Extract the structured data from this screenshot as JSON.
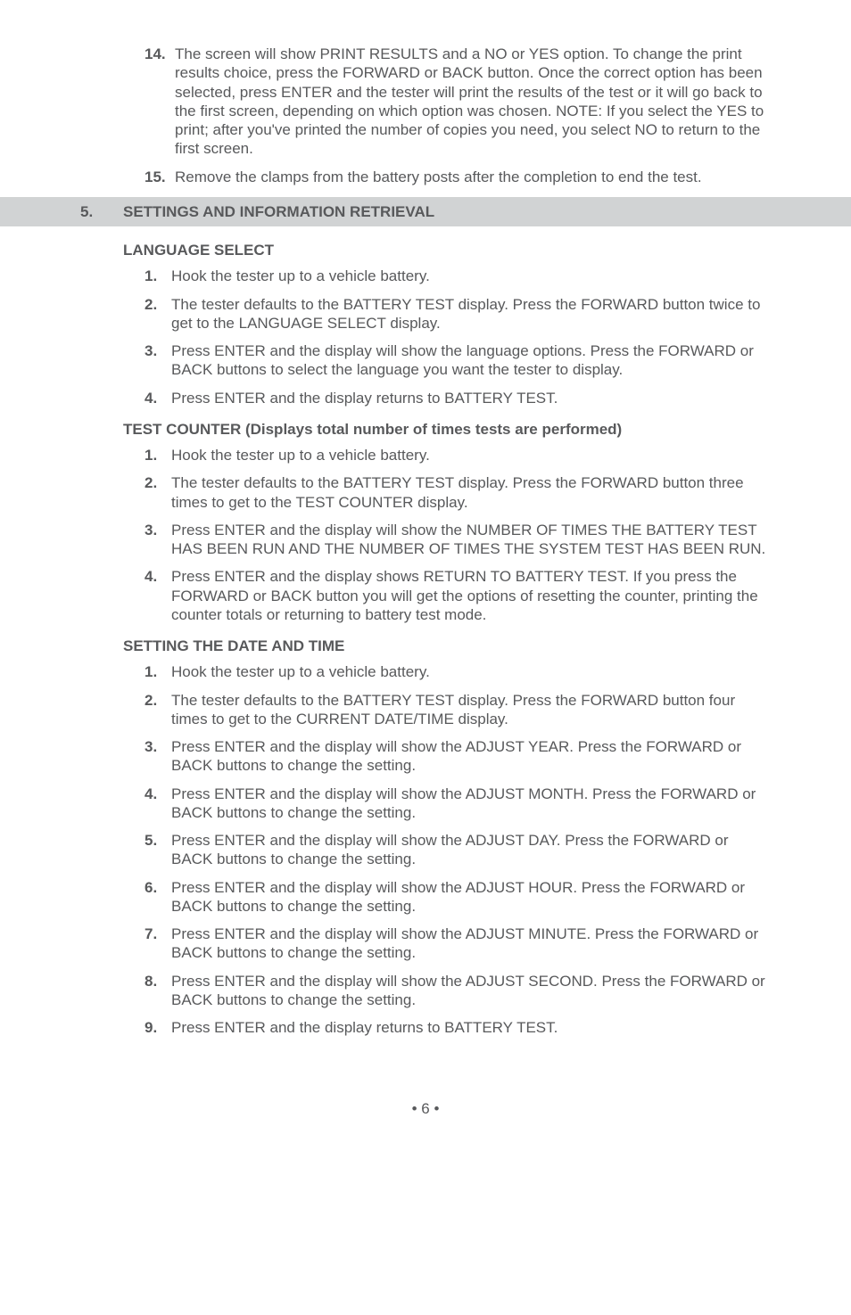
{
  "top_items": [
    {
      "num": "14.",
      "txt": "The screen will show PRINT RESULTS and a NO or YES option. To change the print results choice, press the FORWARD or BACK button. Once the correct option has been selected, press ENTER and the tester will print the results of the test or it will go back to the first screen, depending on which option was chosen. NOTE: If you select the YES to print; after you've printed the number of copies you need, you select NO to return to the first screen."
    },
    {
      "num": "15.",
      "txt": "Remove the clamps from the battery posts after the completion to end the test."
    }
  ],
  "section": {
    "num": "5.",
    "title": "SETTINGS AND INFORMATION RETRIEVAL"
  },
  "lang": {
    "title": "LANGUAGE SELECT",
    "items": [
      {
        "num": "1.",
        "txt": "Hook the tester up to a vehicle battery."
      },
      {
        "num": "2.",
        "txt": "The tester defaults to the BATTERY TEST display. Press the FORWARD button twice to get to the LANGUAGE SELECT display."
      },
      {
        "num": "3.",
        "txt": "Press ENTER and the display will show the language options. Press the FORWARD or BACK buttons to select the language you want the tester to display."
      },
      {
        "num": "4.",
        "txt": "Press ENTER and the display returns to BATTERY TEST."
      }
    ]
  },
  "counter": {
    "title": "TEST COUNTER (Displays total number of times tests are performed)",
    "items": [
      {
        "num": "1.",
        "txt": "Hook the tester up to a vehicle battery."
      },
      {
        "num": "2.",
        "txt": "The tester defaults to the BATTERY TEST display. Press the FORWARD button three times to get to the TEST COUNTER display."
      },
      {
        "num": "3.",
        "txt": "Press ENTER and the display will show the NUMBER OF TIMES THE BATTERY TEST HAS BEEN RUN AND THE NUMBER OF TIMES THE SYSTEM TEST HAS BEEN RUN."
      },
      {
        "num": "4.",
        "txt": "Press ENTER and the display shows RETURN TO BATTERY TEST. If you press the FORWARD or BACK button you will get the options of resetting the counter, printing the counter totals or returning to battery test mode."
      }
    ]
  },
  "datetime": {
    "title": "SETTING THE DATE AND TIME",
    "items": [
      {
        "num": "1.",
        "txt": "Hook the tester up to a vehicle battery."
      },
      {
        "num": "2.",
        "txt": "The tester defaults to the BATTERY TEST display. Press the FORWARD button four times to get to the CURRENT DATE/TIME display."
      },
      {
        "num": "3.",
        "txt": "Press ENTER and the display will show the ADJUST YEAR. Press the FORWARD or BACK buttons to change the setting."
      },
      {
        "num": "4.",
        "txt": "Press ENTER and the display will show the ADJUST MONTH. Press the FORWARD or BACK buttons to change the setting."
      },
      {
        "num": "5.",
        "txt": "Press ENTER and the display will show the ADJUST DAY. Press the FORWARD or BACK buttons to change the setting."
      },
      {
        "num": "6.",
        "txt": "Press ENTER and the display will show the ADJUST HOUR. Press the FORWARD or BACK buttons to change the setting."
      },
      {
        "num": "7.",
        "txt": "Press ENTER and the display will show the ADJUST MINUTE. Press the FORWARD or BACK buttons to change the setting."
      },
      {
        "num": "8.",
        "txt": "Press ENTER and the display will show the ADJUST SECOND. Press the FORWARD or BACK buttons to change the setting."
      },
      {
        "num": "9.",
        "txt": "Press ENTER and the display returns to BATTERY TEST."
      }
    ]
  },
  "footer": "• 6 •"
}
